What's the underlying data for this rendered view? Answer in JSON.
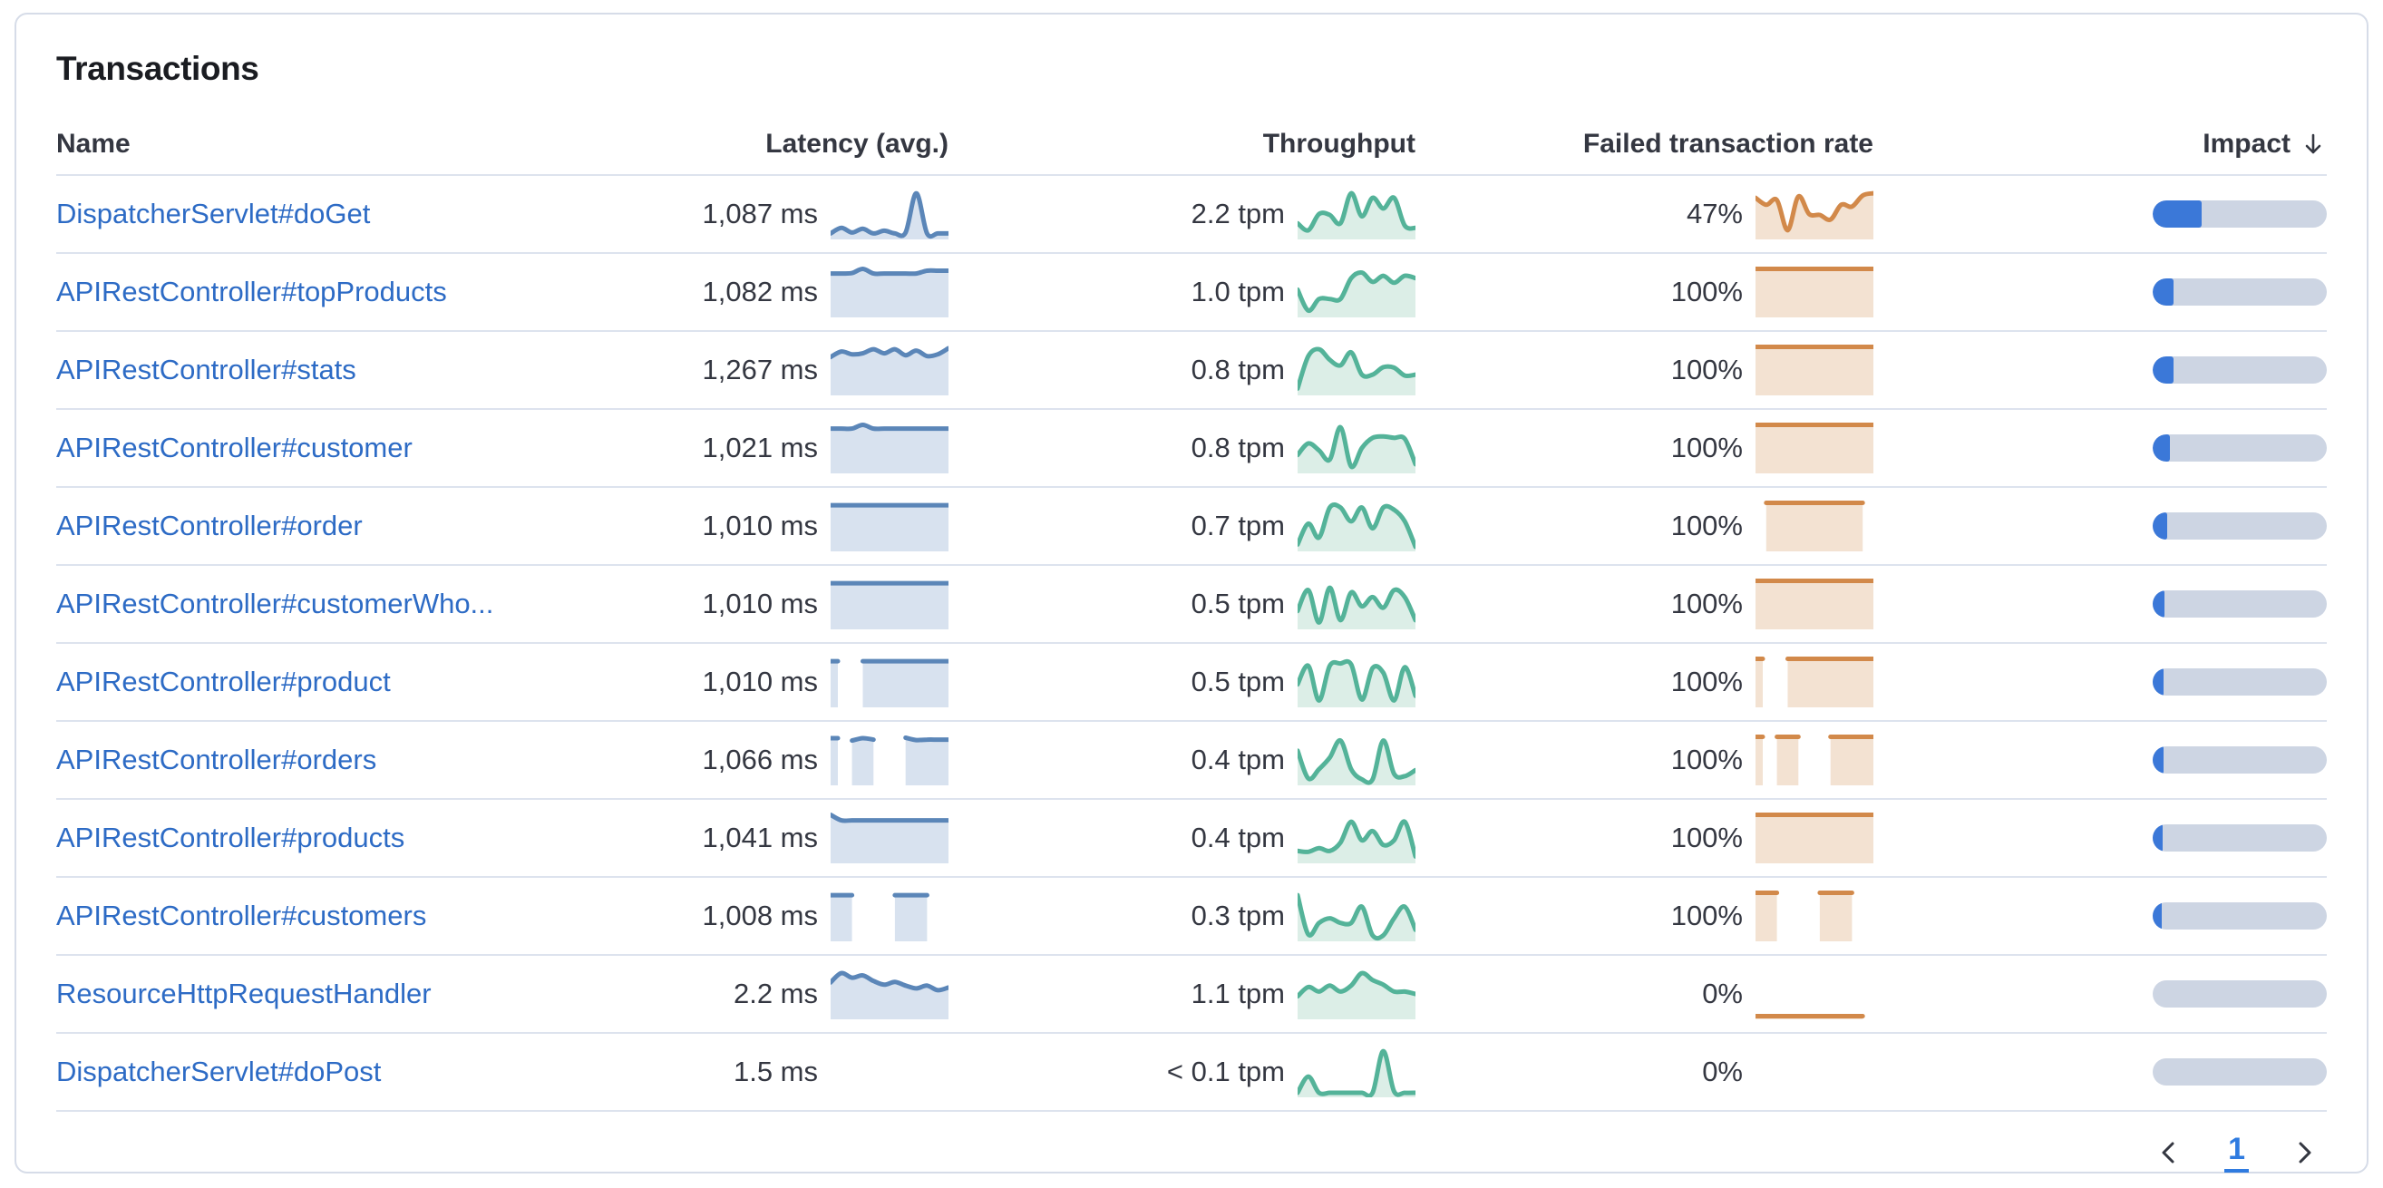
{
  "card": {
    "title": "Transactions"
  },
  "table": {
    "columns": [
      {
        "label": "Name",
        "sortable": false
      },
      {
        "label": "Latency (avg.)",
        "sortable": true
      },
      {
        "label": "Throughput",
        "sortable": true
      },
      {
        "label": "Failed transaction rate",
        "sortable": true
      },
      {
        "label": "Impact",
        "sortable": true,
        "sorted": "desc",
        "sort_icon": "arrow-down-icon"
      }
    ],
    "rows": [
      {
        "name": "DispatcherServlet#doGet",
        "latency": "1,087 ms",
        "throughput": "2.2 tpm",
        "failed_rate": "47%",
        "impact_pct": 28,
        "latency_spark": [
          0.08,
          0.2,
          0.1,
          0.18,
          0.08,
          0.14,
          0.08,
          0.1,
          0.95,
          0.08,
          0.08,
          0.08
        ],
        "throughput_spark": [
          0.3,
          0.15,
          0.5,
          0.48,
          0.3,
          0.95,
          0.45,
          0.85,
          0.62,
          0.85,
          0.25,
          0.2
        ],
        "failed_spark": [
          0.85,
          0.7,
          0.8,
          0.15,
          0.88,
          0.5,
          0.48,
          0.38,
          0.7,
          0.66,
          0.9,
          0.95
        ]
      },
      {
        "name": "APIRestController#topProducts",
        "latency": "1,082 ms",
        "throughput": "1.0 tpm",
        "failed_rate": "100%",
        "impact_pct": 12,
        "latency_spark": [
          0.9,
          0.9,
          0.91,
          1.0,
          0.9,
          0.9,
          0.9,
          0.9,
          0.9,
          0.96,
          0.96,
          0.96
        ],
        "throughput_spark": [
          0.55,
          0.1,
          0.35,
          0.35,
          0.35,
          0.8,
          0.92,
          0.72,
          0.85,
          0.7,
          0.85,
          0.8
        ],
        "failed_spark": [
          1,
          1,
          1,
          1,
          1,
          1,
          1,
          1,
          1,
          1,
          1,
          1
        ]
      },
      {
        "name": "APIRestController#stats",
        "latency": "1,267 ms",
        "throughput": "0.8 tpm",
        "failed_rate": "100%",
        "impact_pct": 12,
        "latency_spark": [
          0.78,
          0.9,
          0.84,
          0.86,
          0.95,
          0.86,
          0.95,
          0.82,
          0.92,
          0.8,
          0.84,
          0.97
        ],
        "throughput_spark": [
          0.1,
          0.8,
          0.95,
          0.72,
          0.6,
          0.88,
          0.4,
          0.4,
          0.56,
          0.55,
          0.38,
          0.4
        ],
        "failed_spark": [
          1,
          1,
          1,
          1,
          1,
          1,
          1,
          1,
          1,
          1,
          1,
          1
        ]
      },
      {
        "name": "APIRestController#customer",
        "latency": "1,021 ms",
        "throughput": "0.8 tpm",
        "failed_rate": "100%",
        "impact_pct": 10,
        "latency_spark": [
          0.92,
          0.92,
          0.92,
          1.0,
          0.92,
          0.92,
          0.92,
          0.92,
          0.92,
          0.92,
          0.92,
          0.92
        ],
        "throughput_spark": [
          0.35,
          0.6,
          0.45,
          0.25,
          0.95,
          0.1,
          0.5,
          0.72,
          0.75,
          0.72,
          0.7,
          0.15
        ],
        "failed_spark": [
          1,
          1,
          1,
          1,
          1,
          1,
          1,
          1,
          1,
          1,
          1,
          1
        ]
      },
      {
        "name": "APIRestController#order",
        "latency": "1,010 ms",
        "throughput": "0.7 tpm",
        "failed_rate": "100%",
        "impact_pct": 8.5,
        "latency_spark": [
          0.95,
          0.95,
          0.95,
          0.95,
          0.95,
          0.95,
          0.95,
          0.95,
          0.95,
          0.95,
          0.95,
          0.95
        ],
        "throughput_spark": [
          0.1,
          0.55,
          0.25,
          0.9,
          0.9,
          0.6,
          0.9,
          0.45,
          0.9,
          0.85,
          0.6,
          0.05
        ],
        "failed_spark": [
          null,
          1,
          1,
          1,
          1,
          1,
          1,
          1,
          1,
          1,
          1,
          null
        ]
      },
      {
        "name": "APIRestController#customerWho...",
        "latency": "1,010 ms",
        "throughput": "0.5 tpm",
        "failed_rate": "100%",
        "impact_pct": 7,
        "latency_spark": [
          0.95,
          0.95,
          0.95,
          0.95,
          0.95,
          0.95,
          0.95,
          0.95,
          0.95,
          0.95,
          0.95,
          0.95
        ],
        "throughput_spark": [
          0.35,
          0.8,
          0.1,
          0.85,
          0.15,
          0.75,
          0.45,
          0.65,
          0.42,
          0.8,
          0.65,
          0.15
        ],
        "failed_spark": [
          1,
          1,
          1,
          1,
          1,
          1,
          1,
          1,
          1,
          1,
          1,
          1
        ]
      },
      {
        "name": "APIRestController#product",
        "latency": "1,010 ms",
        "throughput": "0.5 tpm",
        "failed_rate": "100%",
        "impact_pct": 6.5,
        "latency_spark": [
          0.95,
          null,
          null,
          0.95,
          0.95,
          0.95,
          0.95,
          0.95,
          0.95,
          0.95,
          0.95,
          0.95
        ],
        "throughput_spark": [
          0.45,
          0.85,
          0.1,
          0.85,
          0.9,
          0.88,
          0.12,
          0.8,
          0.7,
          0.1,
          0.82,
          0.2
        ],
        "failed_spark": [
          1,
          null,
          null,
          1,
          1,
          1,
          1,
          1,
          1,
          1,
          1,
          1
        ]
      },
      {
        "name": "APIRestController#orders",
        "latency": "1,066 ms",
        "throughput": "0.4 tpm",
        "failed_rate": "100%",
        "impact_pct": 6,
        "latency_spark": [
          0.97,
          null,
          0.92,
          0.97,
          0.94,
          null,
          null,
          0.98,
          0.93,
          0.94,
          0.94,
          0.94
        ],
        "throughput_spark": [
          0.7,
          0.1,
          0.3,
          0.55,
          0.92,
          0.3,
          0.08,
          0.08,
          0.92,
          0.2,
          0.15,
          0.28
        ],
        "failed_spark": [
          1,
          null,
          1,
          1,
          1,
          null,
          null,
          1,
          1,
          1,
          1,
          1
        ]
      },
      {
        "name": "APIRestController#products",
        "latency": "1,041 ms",
        "throughput": "0.4 tpm",
        "failed_rate": "100%",
        "impact_pct": 5.5,
        "latency_spark": [
          1.0,
          0.88,
          0.88,
          0.88,
          0.88,
          0.88,
          0.88,
          0.88,
          0.88,
          0.88,
          0.88,
          0.88
        ],
        "throughput_spark": [
          0.22,
          0.2,
          0.28,
          0.22,
          0.4,
          0.85,
          0.45,
          0.65,
          0.35,
          0.45,
          0.85,
          0.1
        ],
        "failed_spark": [
          1,
          1,
          1,
          1,
          1,
          1,
          1,
          1,
          1,
          1,
          1,
          1
        ]
      },
      {
        "name": "APIRestController#customers",
        "latency": "1,008 ms",
        "throughput": "0.3 tpm",
        "failed_rate": "100%",
        "impact_pct": 5,
        "latency_spark": [
          0.95,
          0.95,
          0.95,
          null,
          null,
          null,
          0.95,
          0.95,
          0.95,
          0.95,
          null,
          null
        ],
        "throughput_spark": [
          0.95,
          0.1,
          0.35,
          0.45,
          0.35,
          0.35,
          0.7,
          0.08,
          0.08,
          0.45,
          0.7,
          0.2
        ],
        "failed_spark": [
          1,
          1,
          1,
          null,
          null,
          null,
          1,
          1,
          1,
          1,
          null,
          null
        ]
      },
      {
        "name": "ResourceHttpRequestHandler",
        "latency": "2.2 ms",
        "throughput": "1.1 tpm",
        "failed_rate": "0%",
        "impact_pct": 0,
        "latency_spark": [
          0.75,
          0.95,
          0.85,
          0.9,
          0.78,
          0.7,
          0.76,
          0.68,
          0.62,
          0.68,
          0.58,
          0.64
        ],
        "throughput_spark": [
          0.45,
          0.65,
          0.55,
          0.68,
          0.55,
          0.68,
          0.95,
          0.8,
          0.7,
          0.55,
          0.55,
          0.5
        ],
        "failed_spark": [
          0.02,
          0.02,
          0.02,
          0.02,
          0.02,
          0.02,
          0.02,
          0.02,
          0.02,
          0.02,
          0.02,
          null
        ]
      },
      {
        "name": "DispatcherServlet#doPost",
        "latency": "1.5 ms",
        "throughput": "< 0.1 tpm",
        "failed_rate": "0%",
        "impact_pct": 0,
        "latency_spark": [],
        "throughput_spark": [
          0.05,
          0.4,
          0.05,
          0.05,
          0.05,
          0.05,
          0.05,
          0.05,
          0.95,
          0.08,
          0.05,
          0.05
        ],
        "failed_spark": []
      }
    ]
  },
  "pagination": {
    "prev_icon": "chevron-left-icon",
    "page": "1",
    "next_icon": "chevron-right-icon"
  },
  "colors": {
    "latency_line": "#5B86B8",
    "latency_fill": "#D8E2EF",
    "throughput_line": "#54B399",
    "throughput_fill": "#DCEEE7",
    "failed_line": "#D2894A",
    "failed_fill": "#F3E2D2",
    "impact_fill": "#3B78D8",
    "impact_track": "#CDD5E3",
    "link": "#2D6BC5",
    "page_active": "#2F7BE0"
  }
}
